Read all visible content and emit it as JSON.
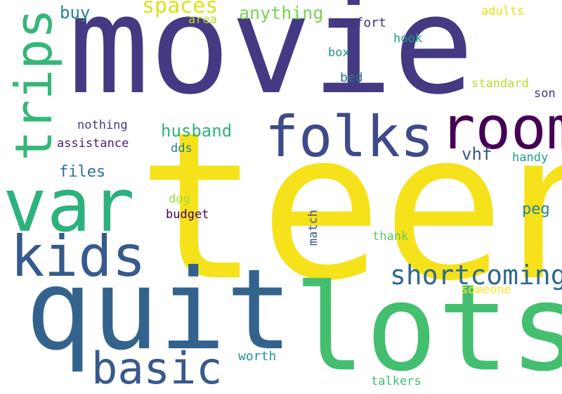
{
  "words": {
    "teen": {
      "text": "teen",
      "color": "#f5e21a"
    },
    "movie": {
      "text": "movie",
      "color": "#443a83"
    },
    "quit": {
      "text": "quit",
      "color": "#33638d"
    },
    "lots": {
      "text": "lots",
      "color": "#44bf70"
    },
    "var": {
      "text": "var",
      "color": "#2db27d"
    },
    "room": {
      "text": "room",
      "color": "#440154"
    },
    "folks": {
      "text": "folks",
      "color": "#3e4a89"
    },
    "kids": {
      "text": "kids",
      "color": "#375a8c"
    },
    "trips": {
      "text": "trips",
      "color": "#35b779"
    },
    "basic": {
      "text": "basic",
      "color": "#38598c"
    },
    "shortcoming": {
      "text": "shortcoming",
      "color": "#31688e"
    },
    "spaces": {
      "text": "spaces",
      "color": "#d8e219"
    },
    "anything": {
      "text": "anything",
      "color": "#7ad151"
    },
    "husband": {
      "text": "husband",
      "color": "#2eb37c"
    },
    "buy": {
      "text": "buy",
      "color": "#26828e"
    },
    "files": {
      "text": "files",
      "color": "#2c728e"
    },
    "vhf": {
      "text": "vhf",
      "color": "#3b528b"
    },
    "peg": {
      "text": "peg",
      "color": "#24868e"
    },
    "comfort": {
      "text": "comfort",
      "color": "#472d7b"
    },
    "adults": {
      "text": "adults",
      "color": "#e2e418"
    },
    "hook": {
      "text": "hook",
      "color": "#1f9e89"
    },
    "area": {
      "text": "area",
      "color": "#b8de29"
    },
    "box": {
      "text": "box",
      "color": "#21918c"
    },
    "bed": {
      "text": "bed",
      "color": "#2c728e"
    },
    "standard": {
      "text": "standard",
      "color": "#b5de2b"
    },
    "son": {
      "text": "son",
      "color": "#46327e"
    },
    "nothing": {
      "text": "nothing",
      "color": "#433e85"
    },
    "assistance": {
      "text": "assistance",
      "color": "#482173"
    },
    "dds": {
      "text": "dds",
      "color": "#287d8e"
    },
    "handy": {
      "text": "handy",
      "color": "#1fa088"
    },
    "dog": {
      "text": "dog",
      "color": "#a0da39"
    },
    "budget": {
      "text": "budget",
      "color": "#440154"
    },
    "match": {
      "text": "match",
      "color": "#3b528b"
    },
    "thank": {
      "text": "thank",
      "color": "#5ec962"
    },
    "someone": {
      "text": "someone",
      "color": "#fde725"
    },
    "worth": {
      "text": "worth",
      "color": "#1f988b"
    },
    "talkers": {
      "text": "talkers",
      "color": "#3fbc73"
    }
  }
}
